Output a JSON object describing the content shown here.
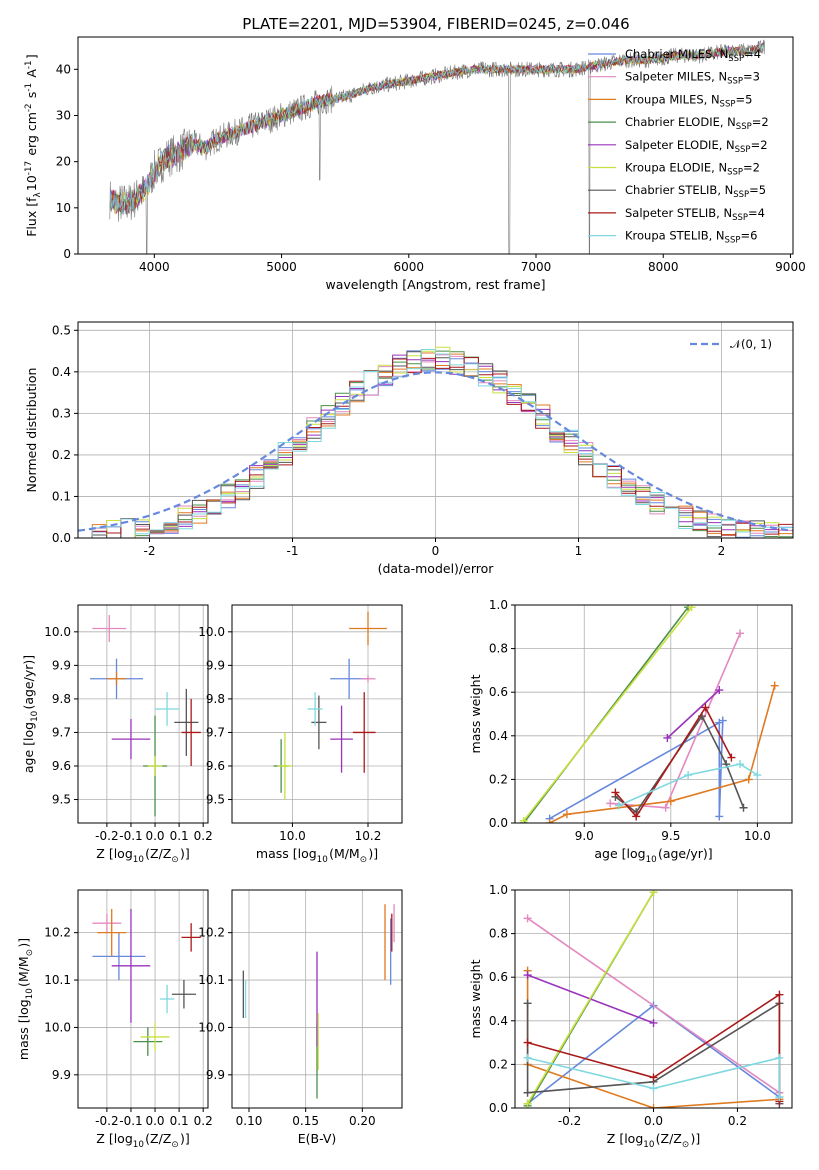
{
  "title": "PLATE=2201, MJD=53904, FIBERID=0245, z=0.046",
  "models": [
    {
      "name": "Chabrier MILES, N$_{SSP}$=4",
      "base": "Chabrier MILES, N",
      "sub": "SSP",
      "tail": "=4",
      "color": "#6688dd"
    },
    {
      "name": "Salpeter MILES, N$_{SSP}$=3",
      "base": "Salpeter MILES, N",
      "sub": "SSP",
      "tail": "=3",
      "color": "#e488c0"
    },
    {
      "name": "Kroupa MILES, N$_{SSP}$=5",
      "base": "Kroupa MILES, N",
      "sub": "SSP",
      "tail": "=5",
      "color": "#e07a20"
    },
    {
      "name": "Chabrier ELODIE, N$_{SSP}$=2",
      "base": "Chabrier ELODIE, N",
      "sub": "SSP",
      "tail": "=2",
      "color": "#4a8f4a"
    },
    {
      "name": "Salpeter ELODIE, N$_{SSP}$=2",
      "base": "Salpeter ELODIE, N",
      "sub": "SSP",
      "tail": "=2",
      "color": "#9933bb"
    },
    {
      "name": "Kroupa ELODIE, N$_{SSP}$=2",
      "base": "Kroupa ELODIE, N",
      "sub": "SSP",
      "tail": "=2",
      "color": "#c8e040"
    },
    {
      "name": "Chabrier STELIB, N$_{SSP}$=5",
      "base": "Chabrier STELIB, N",
      "sub": "SSP",
      "tail": "=5",
      "color": "#555555"
    },
    {
      "name": "Salpeter STELIB, N$_{SSP}$=4",
      "base": "Salpeter STELIB, N",
      "sub": "SSP",
      "tail": "=4",
      "color": "#aa1a1a"
    },
    {
      "name": "Kroupa STELIB, N$_{SSP}$=6",
      "base": "Kroupa STELIB, N",
      "sub": "SSP",
      "tail": "=6",
      "color": "#7fd8e0"
    }
  ],
  "chart_data": [
    {
      "id": "spectrum",
      "type": "line",
      "xlabel": "wavelength [Angstrom, rest frame]",
      "ylabel": "Flux [f$_\\lambda$10$^{-17}$ erg cm$^{-2}$ s$^{-1}$ A$^{-1}$]",
      "xlim": [
        3400,
        9020
      ],
      "ylim": [
        0,
        47
      ],
      "xticks": [
        4000,
        5000,
        6000,
        7000,
        8000,
        9000
      ],
      "yticks": [
        0,
        10,
        20,
        30,
        40
      ],
      "continuum": {
        "x": [
          3650,
          3700,
          3800,
          3900,
          3950,
          4000,
          4100,
          4200,
          4300,
          4400,
          4500,
          4700,
          4900,
          5100,
          5300,
          5500,
          5700,
          5900,
          6100,
          6300,
          6500,
          6700,
          6900,
          7100,
          7300,
          7500,
          7700,
          7900,
          8100,
          8300,
          8500,
          8700,
          8800
        ],
        "y": [
          12,
          11,
          11,
          13,
          15,
          18,
          21,
          22,
          24,
          23,
          25,
          27,
          29,
          31,
          33,
          34,
          36,
          37,
          38,
          39,
          40,
          40,
          40,
          40,
          40,
          41,
          42,
          42,
          43,
          43,
          44,
          44,
          45
        ]
      },
      "observed_drops": [
        {
          "x": 3940,
          "y": 0
        },
        {
          "x": 6790,
          "y": 0
        },
        {
          "x": 7420,
          "y": 0
        }
      ]
    },
    {
      "id": "residuals",
      "type": "histogram",
      "xlabel": "(data-model)/error",
      "ylabel": "Normed distribution",
      "xlim": [
        -2.5,
        2.5
      ],
      "ylim": [
        0,
        0.52
      ],
      "xticks": [
        -2,
        -1,
        0,
        1,
        2
      ],
      "yticks": [
        0,
        0.1,
        0.2,
        0.3,
        0.4,
        0.5
      ],
      "bin_width": 0.1,
      "gaussian_label": "$\\mathcal{N}(0,1)$",
      "gaussian_label_text": "𝒩(0, 1)",
      "gaussian_color": "#6688dd"
    },
    {
      "id": "age-vs-Z",
      "type": "scatter-errorbar",
      "xlabel": "Z [log$_{10}$(Z/Z$_\\odot$)]",
      "ylabel": "age  [log$_{10}$(age/yr)]",
      "xlim": [
        -0.32,
        0.22
      ],
      "ylim": [
        9.43,
        10.08
      ],
      "xticks": [
        -0.2,
        -0.1,
        0.0,
        0.1,
        0.2
      ],
      "yticks": [
        9.5,
        9.6,
        9.7,
        9.8,
        9.9,
        10.0
      ],
      "points": [
        {
          "x": -0.16,
          "y": 9.86,
          "ex": 0.11,
          "ey": 0.06
        },
        {
          "x": -0.19,
          "y": 10.01,
          "ex": 0.07,
          "ey": 0.04
        },
        {
          "x": -0.16,
          "y": 9.86,
          "ex": 0.04,
          "ey": 0.02
        },
        {
          "x": 0.0,
          "y": 9.6,
          "ex": 0.05,
          "ey": 0.15
        },
        {
          "x": -0.1,
          "y": 9.68,
          "ex": 0.08,
          "ey": 0.06
        },
        {
          "x": 0.0,
          "y": 9.6,
          "ex": 0.03,
          "ey": 0.03
        },
        {
          "x": 0.13,
          "y": 9.73,
          "ex": 0.05,
          "ey": 0.1
        },
        {
          "x": 0.15,
          "y": 9.7,
          "ex": 0.04,
          "ey": 0.1
        },
        {
          "x": 0.05,
          "y": 9.77,
          "ex": 0.05,
          "ey": 0.05
        }
      ]
    },
    {
      "id": "age-vs-mass",
      "type": "scatter-errorbar",
      "xlabel": "mass [log$_{10}$(M/M$_\\odot$)]",
      "ylabel": "",
      "xlim": [
        9.84,
        10.29
      ],
      "ylim": [
        9.43,
        10.08
      ],
      "xticks": [
        10.0,
        10.2
      ],
      "yticks": [
        9.5,
        9.6,
        9.7,
        9.8,
        9.9,
        10.0
      ],
      "points": [
        {
          "x": 10.15,
          "y": 9.86,
          "ex": 0.05,
          "ey": 0.06
        },
        {
          "x": 10.2,
          "y": 9.86,
          "ex": 0.02,
          "ey": 0.01
        },
        {
          "x": 10.2,
          "y": 10.01,
          "ex": 0.05,
          "ey": 0.05
        },
        {
          "x": 9.97,
          "y": 9.6,
          "ex": 0.02,
          "ey": 0.08
        },
        {
          "x": 10.13,
          "y": 9.68,
          "ex": 0.03,
          "ey": 0.1
        },
        {
          "x": 9.98,
          "y": 9.6,
          "ex": 0.02,
          "ey": 0.1
        },
        {
          "x": 10.07,
          "y": 9.73,
          "ex": 0.02,
          "ey": 0.08
        },
        {
          "x": 10.19,
          "y": 9.7,
          "ex": 0.03,
          "ey": 0.12
        },
        {
          "x": 10.06,
          "y": 9.77,
          "ex": 0.02,
          "ey": 0.05
        }
      ]
    },
    {
      "id": "mass-weight-vs-age",
      "type": "line",
      "xlabel": "age  [log$_{10}$(age/yr)]",
      "ylabel": "mass weight",
      "xlim": [
        8.6,
        10.2
      ],
      "ylim": [
        0,
        1.0
      ],
      "xticks": [
        9.0,
        9.5,
        10.0
      ],
      "yticks": [
        0,
        0.2,
        0.4,
        0.6,
        0.8,
        1.0
      ],
      "series": [
        {
          "model": 0,
          "x": [
            8.8,
            9.78,
            9.78,
            9.8
          ],
          "y": [
            0.02,
            0.46,
            0.03,
            0.47
          ]
        },
        {
          "model": 1,
          "x": [
            9.15,
            9.47,
            9.9
          ],
          "y": [
            0.09,
            0.07,
            0.87
          ]
        },
        {
          "model": 2,
          "x": [
            8.8,
            8.9,
            9.5,
            9.95,
            10.1
          ],
          "y": [
            0.0,
            0.04,
            0.1,
            0.2,
            0.63
          ]
        },
        {
          "model": 3,
          "x": [
            8.65,
            9.6
          ],
          "y": [
            0.0,
            0.99
          ]
        },
        {
          "model": 4,
          "x": [
            9.48,
            9.78
          ],
          "y": [
            0.39,
            0.61
          ]
        },
        {
          "model": 5,
          "x": [
            8.65,
            9.62
          ],
          "y": [
            0.01,
            0.99
          ]
        },
        {
          "model": 6,
          "x": [
            9.18,
            9.3,
            9.68,
            9.82,
            9.92
          ],
          "y": [
            0.12,
            0.05,
            0.49,
            0.27,
            0.07
          ]
        },
        {
          "model": 7,
          "x": [
            9.18,
            9.3,
            9.7,
            9.85
          ],
          "y": [
            0.14,
            0.03,
            0.53,
            0.3
          ]
        },
        {
          "model": 8,
          "x": [
            9.2,
            9.6,
            9.9,
            10.0
          ],
          "y": [
            0.08,
            0.22,
            0.27,
            0.22
          ]
        }
      ]
    },
    {
      "id": "mass-vs-Z",
      "type": "scatter-errorbar",
      "xlabel": "Z [log$_{10}$(Z/Z$_\\odot$)]",
      "ylabel": "mass [log$_{10}$(M/M$_\\odot$)]",
      "xlim": [
        -0.32,
        0.22
      ],
      "ylim": [
        9.83,
        10.29
      ],
      "xticks": [
        -0.2,
        -0.1,
        0.0,
        0.1,
        0.2
      ],
      "yticks": [
        9.9,
        10.0,
        10.1,
        10.2
      ],
      "points": [
        {
          "x": -0.15,
          "y": 10.15,
          "ex": 0.11,
          "ey": 0.05
        },
        {
          "x": -0.2,
          "y": 10.22,
          "ex": 0.06,
          "ey": 0.02
        },
        {
          "x": -0.18,
          "y": 10.2,
          "ex": 0.06,
          "ey": 0.05
        },
        {
          "x": -0.03,
          "y": 9.97,
          "ex": 0.06,
          "ey": 0.03
        },
        {
          "x": -0.1,
          "y": 10.13,
          "ex": 0.08,
          "ey": 0.12
        },
        {
          "x": 0.0,
          "y": 9.98,
          "ex": 0.06,
          "ey": 0.03
        },
        {
          "x": 0.12,
          "y": 10.07,
          "ex": 0.05,
          "ey": 0.03
        },
        {
          "x": 0.15,
          "y": 10.19,
          "ex": 0.04,
          "ey": 0.03
        },
        {
          "x": 0.05,
          "y": 10.06,
          "ex": 0.03,
          "ey": 0.03
        }
      ]
    },
    {
      "id": "mass-vs-EBV",
      "type": "scatter-errorbar",
      "xlabel": "E(B-V)",
      "ylabel": "",
      "xlim": [
        0.085,
        0.235
      ],
      "ylim": [
        9.83,
        10.29
      ],
      "xticks": [
        0.1,
        0.15,
        0.2
      ],
      "yticks": [
        9.9,
        10.0,
        10.1,
        10.2
      ],
      "points": [
        {
          "x": 0.225,
          "y": 10.16,
          "ex": 0.0,
          "ey": 0.07
        },
        {
          "x": 0.228,
          "y": 10.22,
          "ex": 0.0,
          "ey": 0.04
        },
        {
          "x": 0.22,
          "y": 10.18,
          "ex": 0.0,
          "ey": 0.08
        },
        {
          "x": 0.16,
          "y": 9.93,
          "ex": 0.0,
          "ey": 0.08
        },
        {
          "x": 0.16,
          "y": 10.06,
          "ex": 0.0,
          "ey": 0.1
        },
        {
          "x": 0.161,
          "y": 9.97,
          "ex": 0.0,
          "ey": 0.06
        },
        {
          "x": 0.095,
          "y": 10.07,
          "ex": 0.0,
          "ey": 0.05
        },
        {
          "x": 0.226,
          "y": 10.2,
          "ex": 0.0,
          "ey": 0.04
        },
        {
          "x": 0.097,
          "y": 10.06,
          "ex": 0.0,
          "ey": 0.04
        }
      ]
    },
    {
      "id": "mass-weight-vs-Z",
      "type": "line",
      "xlabel": "Z [log$_{10}$(Z/Z$_\\odot$)]",
      "ylabel": "mass weight",
      "xlim": [
        -0.33,
        0.33
      ],
      "ylim": [
        0,
        1.0
      ],
      "xticks": [
        -0.2,
        0.0,
        0.2
      ],
      "yticks": [
        0,
        0.2,
        0.4,
        0.6,
        0.8,
        1.0
      ],
      "series": [
        {
          "model": 0,
          "x": [
            -0.3,
            0.0,
            0.3
          ],
          "y": [
            0.02,
            0.47,
            0.05
          ]
        },
        {
          "model": 1,
          "x": [
            -0.3,
            0.3
          ],
          "y": [
            0.87,
            0.07
          ]
        },
        {
          "model": 2,
          "x": [
            -0.3,
            -0.3,
            0.0,
            0.3
          ],
          "y": [
            0.63,
            0.2,
            0.0,
            0.04
          ]
        },
        {
          "model": 3,
          "x": [
            -0.3,
            0.0
          ],
          "y": [
            0.01,
            0.99
          ]
        },
        {
          "model": 4,
          "x": [
            -0.3,
            0.0
          ],
          "y": [
            0.61,
            0.39
          ]
        },
        {
          "model": 5,
          "x": [
            -0.3,
            0.0
          ],
          "y": [
            0.02,
            0.99
          ]
        },
        {
          "model": 6,
          "x": [
            -0.3,
            -0.3,
            0.0,
            0.3,
            0.3
          ],
          "y": [
            0.48,
            0.07,
            0.12,
            0.48,
            0.02
          ]
        },
        {
          "model": 7,
          "x": [
            -0.3,
            0.0,
            0.3,
            0.3
          ],
          "y": [
            0.3,
            0.14,
            0.52,
            0.03
          ]
        },
        {
          "model": 8,
          "x": [
            -0.3,
            0.0,
            0.3,
            0.3
          ],
          "y": [
            0.23,
            0.09,
            0.23,
            0.05
          ]
        }
      ]
    }
  ]
}
